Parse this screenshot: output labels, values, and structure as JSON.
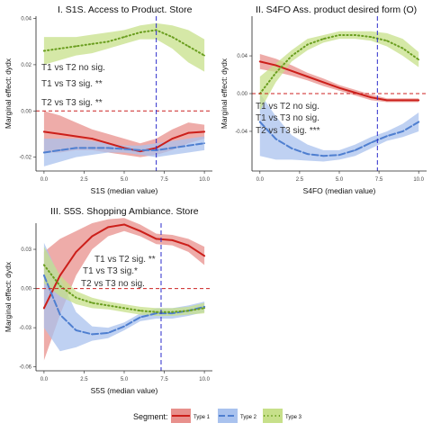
{
  "chart_data": [
    {
      "type": "line",
      "title": "I. S1S. Access to Product. Store",
      "xlabel": "S1S (median value)",
      "ylabel": "Marginal effect: dydx",
      "xlim": [
        -0.5,
        10.5
      ],
      "ylim": [
        -0.026,
        0.041
      ],
      "xticks": [
        0,
        2.5,
        5,
        7.5,
        10
      ],
      "xtick_labels": [
        "0.0",
        "2.5",
        "5.0",
        "7.5",
        "10.0"
      ],
      "yticks": [
        -0.02,
        0,
        0.02,
        0.04
      ],
      "ytick_labels": [
        "-0.02",
        "0.00",
        "0.02",
        "0.04"
      ],
      "vline_x": 7.0,
      "hline_y": 0,
      "grid": false,
      "x": [
        0,
        1,
        2,
        3,
        4,
        5,
        6,
        7,
        8,
        9,
        10
      ],
      "series": [
        {
          "name": "Type 1",
          "values": [
            -0.009,
            -0.01,
            -0.011,
            -0.012,
            -0.014,
            -0.016,
            -0.0175,
            -0.016,
            -0.012,
            -0.0095,
            -0.009
          ],
          "lower": [
            -0.018,
            -0.018,
            -0.017,
            -0.017,
            -0.018,
            -0.019,
            -0.02,
            -0.019,
            -0.017,
            -0.014,
            -0.012
          ],
          "upper": [
            0.0,
            -0.002,
            -0.005,
            -0.008,
            -0.01,
            -0.012,
            -0.014,
            -0.012,
            -0.008,
            -0.005,
            -0.006
          ]
        },
        {
          "name": "Type 2",
          "values": [
            -0.018,
            -0.017,
            -0.016,
            -0.016,
            -0.016,
            -0.0165,
            -0.017,
            -0.017,
            -0.016,
            -0.015,
            -0.014
          ],
          "lower": [
            -0.024,
            -0.022,
            -0.02,
            -0.019,
            -0.018,
            -0.018,
            -0.019,
            -0.02,
            -0.019,
            -0.018,
            -0.017
          ],
          "upper": [
            -0.012,
            -0.012,
            -0.012,
            -0.013,
            -0.014,
            -0.015,
            -0.015,
            -0.014,
            -0.013,
            -0.012,
            -0.011
          ]
        },
        {
          "name": "Type 3",
          "values": [
            0.026,
            0.027,
            0.028,
            0.029,
            0.03,
            0.032,
            0.034,
            0.035,
            0.032,
            0.028,
            0.024
          ],
          "lower": [
            0.02,
            0.022,
            0.024,
            0.025,
            0.027,
            0.029,
            0.031,
            0.031,
            0.027,
            0.021,
            0.017
          ],
          "upper": [
            0.032,
            0.032,
            0.032,
            0.033,
            0.034,
            0.035,
            0.037,
            0.038,
            0.037,
            0.035,
            0.031
          ]
        }
      ],
      "annotations": [
        "T1 vs T2 no sig.",
        "T1 vs T3 sig. **",
        "T2 vs T3 sig. **"
      ]
    },
    {
      "type": "line",
      "title": "II. S4FO  Ass. product desired form (O)",
      "xlabel": "S4FO (median value)",
      "ylabel": "Marginal effect: dydx",
      "xlim": [
        -0.5,
        10.5
      ],
      "ylim": [
        -0.082,
        0.082
      ],
      "xticks": [
        0,
        2.5,
        5,
        7.5,
        10
      ],
      "xtick_labels": [
        "0.0",
        "2.5",
        "5.0",
        "7.5",
        "10.0"
      ],
      "yticks": [
        -0.04,
        0,
        0.04
      ],
      "ytick_labels": [
        "-0.04",
        "0.00",
        "0.04"
      ],
      "vline_x": 7.4,
      "hline_y": 0,
      "grid": false,
      "x": [
        0,
        1,
        2,
        3,
        4,
        5,
        6,
        7,
        8,
        9,
        10
      ],
      "series": [
        {
          "name": "Type 1",
          "values": [
            0.034,
            0.03,
            0.024,
            0.018,
            0.012,
            0.006,
            0.001,
            -0.004,
            -0.007,
            -0.007,
            -0.007
          ],
          "lower": [
            0.026,
            0.023,
            0.019,
            0.014,
            0.008,
            0.003,
            -0.002,
            -0.007,
            -0.009,
            -0.009,
            -0.009
          ],
          "upper": [
            0.042,
            0.037,
            0.03,
            0.022,
            0.016,
            0.009,
            0.004,
            -0.001,
            -0.005,
            -0.005,
            -0.005
          ]
        },
        {
          "name": "Type 2",
          "values": [
            -0.03,
            -0.048,
            -0.058,
            -0.064,
            -0.066,
            -0.065,
            -0.06,
            -0.052,
            -0.045,
            -0.04,
            -0.03
          ],
          "lower": [
            -0.066,
            -0.07,
            -0.07,
            -0.071,
            -0.072,
            -0.07,
            -0.066,
            -0.058,
            -0.05,
            -0.046,
            -0.04
          ],
          "upper": [
            0.0,
            -0.024,
            -0.044,
            -0.054,
            -0.06,
            -0.06,
            -0.054,
            -0.046,
            -0.04,
            -0.032,
            -0.02
          ]
        },
        {
          "name": "Type 3",
          "values": [
            0.0,
            0.022,
            0.04,
            0.052,
            0.058,
            0.062,
            0.062,
            0.06,
            0.056,
            0.048,
            0.036
          ],
          "lower": [
            -0.018,
            0.012,
            0.034,
            0.046,
            0.054,
            0.058,
            0.058,
            0.056,
            0.05,
            0.04,
            0.028
          ],
          "upper": [
            0.018,
            0.032,
            0.046,
            0.058,
            0.062,
            0.066,
            0.066,
            0.066,
            0.064,
            0.058,
            0.044
          ]
        }
      ],
      "annotations": [
        "T1 vs T2 no sig.",
        "T1 vs T3  no sig.",
        "T2 vs T3 sig. ***"
      ]
    },
    {
      "type": "line",
      "title": "III.  S5S. Shopping Ambiance. Store",
      "xlabel": "S5S (median value)",
      "ylabel": "Marginal effect: dydx",
      "xlim": [
        -0.5,
        10.5
      ],
      "ylim": [
        -0.063,
        0.05
      ],
      "xticks": [
        0,
        2.5,
        5,
        7.5,
        10
      ],
      "xtick_labels": [
        "0.0",
        "2.5",
        "5.0",
        "7.5",
        "10.0"
      ],
      "yticks": [
        -0.06,
        -0.03,
        0,
        0.03
      ],
      "ytick_labels": [
        "-0.06",
        "-0.03",
        "0.00",
        "0.03"
      ],
      "vline_x": 7.3,
      "hline_y": 0,
      "grid": false,
      "x": [
        0,
        1,
        2,
        3,
        4,
        5,
        6,
        7,
        8,
        9,
        10
      ],
      "series": [
        {
          "name": "Type 1",
          "values": [
            -0.015,
            0.01,
            0.028,
            0.04,
            0.047,
            0.049,
            0.044,
            0.038,
            0.037,
            0.033,
            0.025
          ],
          "lower": [
            -0.055,
            -0.02,
            0.01,
            0.03,
            0.04,
            0.044,
            0.04,
            0.034,
            0.033,
            0.028,
            0.018
          ],
          "upper": [
            0.028,
            0.038,
            0.044,
            0.05,
            0.053,
            0.054,
            0.049,
            0.042,
            0.041,
            0.038,
            0.032
          ]
        },
        {
          "name": "Type 2",
          "values": [
            0.01,
            -0.02,
            -0.032,
            -0.035,
            -0.034,
            -0.029,
            -0.022,
            -0.019,
            -0.019,
            -0.017,
            -0.014
          ],
          "lower": [
            -0.03,
            -0.048,
            -0.045,
            -0.04,
            -0.038,
            -0.032,
            -0.025,
            -0.023,
            -0.023,
            -0.021,
            -0.018
          ],
          "upper": [
            0.035,
            0.008,
            -0.018,
            -0.029,
            -0.03,
            -0.026,
            -0.019,
            -0.015,
            -0.015,
            -0.013,
            -0.01
          ]
        },
        {
          "name": "Type 3",
          "values": [
            0.018,
            0.002,
            -0.007,
            -0.011,
            -0.013,
            -0.015,
            -0.017,
            -0.018,
            -0.018,
            -0.017,
            -0.015
          ],
          "lower": [
            0.004,
            -0.006,
            -0.012,
            -0.015,
            -0.016,
            -0.018,
            -0.02,
            -0.021,
            -0.021,
            -0.02,
            -0.019
          ],
          "upper": [
            0.032,
            0.01,
            -0.002,
            -0.007,
            -0.01,
            -0.012,
            -0.014,
            -0.015,
            -0.015,
            -0.014,
            -0.011
          ]
        }
      ],
      "annotations": [
        "T1 vs T2 sig. **",
        "T1 vs T3  sig.*",
        "T2 vs T3 no sig."
      ]
    }
  ],
  "legend": {
    "title": "Segment:",
    "position": "bottom",
    "items": [
      {
        "label": "Type 1",
        "color": "#cc1f1a",
        "fill": "#e8908c",
        "dash": "solid"
      },
      {
        "label": "Type 2",
        "color": "#4f7fd0",
        "fill": "#a9c2ee",
        "dash": "longdash"
      },
      {
        "label": "Type 3",
        "color": "#6a9e1f",
        "fill": "#c7e08a",
        "dash": "dotted"
      }
    ]
  },
  "colors": {
    "vline": "#2b2bcc",
    "hline": "#cc2222"
  }
}
